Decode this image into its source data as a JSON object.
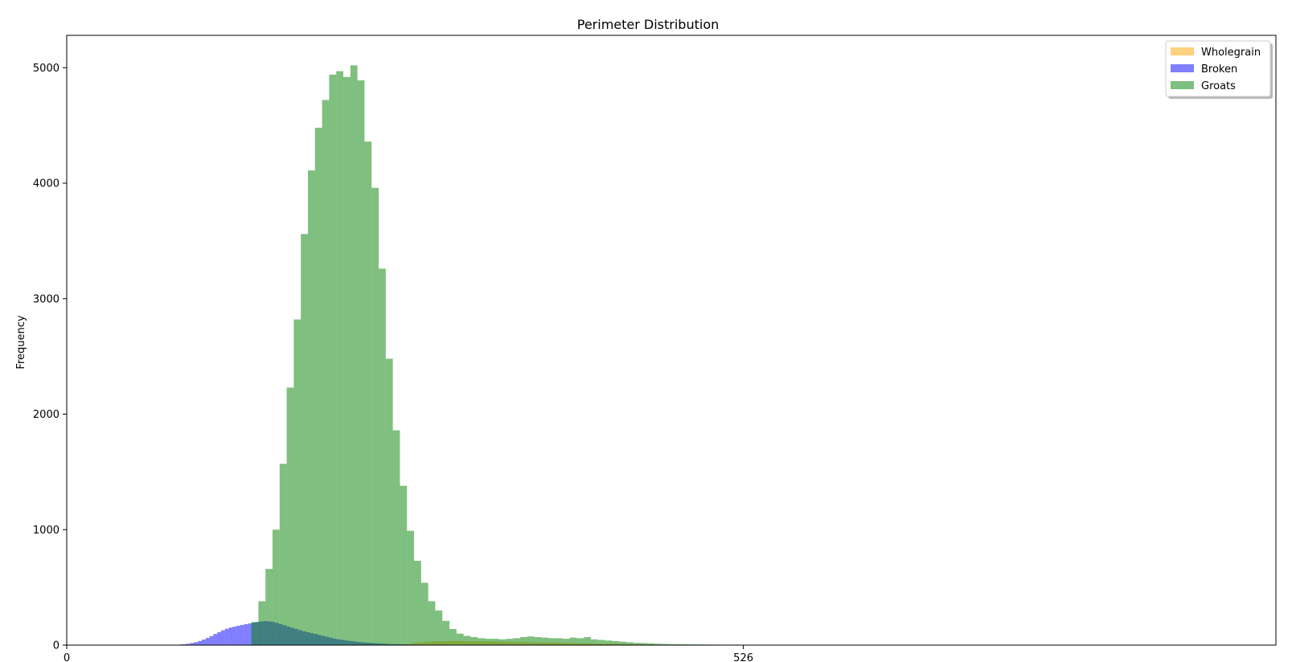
{
  "chart_data": {
    "type": "bar",
    "title": "Perimeter Distribution",
    "xlabel": "",
    "ylabel": "Frequency",
    "xlim": [
      0,
      940
    ],
    "ylim": [
      0,
      5280
    ],
    "x_ticks": [
      {
        "value": 0,
        "label": "0"
      },
      {
        "value": 526,
        "label": "526"
      }
    ],
    "y_ticks": [
      {
        "value": 0,
        "label": "0"
      },
      {
        "value": 1000,
        "label": "1000"
      },
      {
        "value": 2000,
        "label": "2000"
      },
      {
        "value": 3000,
        "label": "3000"
      },
      {
        "value": 4000,
        "label": "4000"
      },
      {
        "value": 5000,
        "label": "5000"
      }
    ],
    "grid": false,
    "legend_position": "top-right",
    "series": [
      {
        "name": "Wholegrain",
        "color": "#ffa500",
        "opacity": 0.5,
        "bin_width": 3,
        "bins": [
          {
            "x": 258,
            "h": 5
          },
          {
            "x": 261,
            "h": 8
          },
          {
            "x": 264,
            "h": 10
          },
          {
            "x": 267,
            "h": 15
          },
          {
            "x": 270,
            "h": 20
          },
          {
            "x": 273,
            "h": 24
          },
          {
            "x": 276,
            "h": 26
          },
          {
            "x": 279,
            "h": 28
          },
          {
            "x": 282,
            "h": 30
          },
          {
            "x": 285,
            "h": 32
          },
          {
            "x": 288,
            "h": 33
          },
          {
            "x": 291,
            "h": 34
          },
          {
            "x": 294,
            "h": 35
          },
          {
            "x": 297,
            "h": 36
          },
          {
            "x": 300,
            "h": 36
          },
          {
            "x": 303,
            "h": 36
          },
          {
            "x": 306,
            "h": 36
          },
          {
            "x": 309,
            "h": 35
          },
          {
            "x": 312,
            "h": 35
          },
          {
            "x": 315,
            "h": 34
          },
          {
            "x": 318,
            "h": 34
          },
          {
            "x": 321,
            "h": 33
          },
          {
            "x": 324,
            "h": 33
          },
          {
            "x": 327,
            "h": 32
          },
          {
            "x": 330,
            "h": 32
          },
          {
            "x": 333,
            "h": 31
          },
          {
            "x": 336,
            "h": 30
          },
          {
            "x": 339,
            "h": 30
          },
          {
            "x": 342,
            "h": 29
          },
          {
            "x": 345,
            "h": 28
          },
          {
            "x": 348,
            "h": 28
          },
          {
            "x": 351,
            "h": 27
          },
          {
            "x": 354,
            "h": 26
          },
          {
            "x": 357,
            "h": 26
          },
          {
            "x": 360,
            "h": 25
          },
          {
            "x": 363,
            "h": 24
          },
          {
            "x": 366,
            "h": 24
          },
          {
            "x": 369,
            "h": 23
          },
          {
            "x": 372,
            "h": 22
          },
          {
            "x": 375,
            "h": 22
          },
          {
            "x": 378,
            "h": 21
          },
          {
            "x": 381,
            "h": 20
          },
          {
            "x": 384,
            "h": 20
          },
          {
            "x": 387,
            "h": 19
          },
          {
            "x": 390,
            "h": 18
          },
          {
            "x": 393,
            "h": 18
          },
          {
            "x": 396,
            "h": 17
          },
          {
            "x": 399,
            "h": 16
          },
          {
            "x": 402,
            "h": 16
          },
          {
            "x": 405,
            "h": 15
          },
          {
            "x": 408,
            "h": 14
          },
          {
            "x": 411,
            "h": 14
          },
          {
            "x": 414,
            "h": 13
          },
          {
            "x": 417,
            "h": 12
          },
          {
            "x": 420,
            "h": 12
          },
          {
            "x": 423,
            "h": 11
          },
          {
            "x": 426,
            "h": 10
          },
          {
            "x": 429,
            "h": 10
          },
          {
            "x": 432,
            "h": 9
          },
          {
            "x": 435,
            "h": 8
          },
          {
            "x": 438,
            "h": 8
          },
          {
            "x": 441,
            "h": 7
          },
          {
            "x": 444,
            "h": 6
          },
          {
            "x": 447,
            "h": 6
          },
          {
            "x": 450,
            "h": 5
          },
          {
            "x": 453,
            "h": 5
          },
          {
            "x": 456,
            "h": 4
          },
          {
            "x": 459,
            "h": 4
          },
          {
            "x": 462,
            "h": 3
          },
          {
            "x": 465,
            "h": 3
          },
          {
            "x": 468,
            "h": 3
          },
          {
            "x": 471,
            "h": 2
          },
          {
            "x": 474,
            "h": 2
          },
          {
            "x": 477,
            "h": 2
          },
          {
            "x": 480,
            "h": 2
          }
        ]
      },
      {
        "name": "Broken",
        "color": "#0000ff",
        "opacity": 0.5,
        "bin_width": 3,
        "bins": [
          {
            "x": 87,
            "h": 5
          },
          {
            "x": 90,
            "h": 8
          },
          {
            "x": 93,
            "h": 12
          },
          {
            "x": 96,
            "h": 18
          },
          {
            "x": 99,
            "h": 26
          },
          {
            "x": 102,
            "h": 36
          },
          {
            "x": 105,
            "h": 48
          },
          {
            "x": 108,
            "h": 62
          },
          {
            "x": 111,
            "h": 78
          },
          {
            "x": 114,
            "h": 96
          },
          {
            "x": 117,
            "h": 112
          },
          {
            "x": 120,
            "h": 128
          },
          {
            "x": 123,
            "h": 142
          },
          {
            "x": 126,
            "h": 152
          },
          {
            "x": 129,
            "h": 160
          },
          {
            "x": 132,
            "h": 168
          },
          {
            "x": 135,
            "h": 175
          },
          {
            "x": 138,
            "h": 182
          },
          {
            "x": 141,
            "h": 188
          },
          {
            "x": 144,
            "h": 195
          },
          {
            "x": 147,
            "h": 200
          },
          {
            "x": 150,
            "h": 205
          },
          {
            "x": 153,
            "h": 208
          },
          {
            "x": 156,
            "h": 205
          },
          {
            "x": 159,
            "h": 200
          },
          {
            "x": 162,
            "h": 192
          },
          {
            "x": 165,
            "h": 182
          },
          {
            "x": 168,
            "h": 172
          },
          {
            "x": 171,
            "h": 160
          },
          {
            "x": 174,
            "h": 150
          },
          {
            "x": 177,
            "h": 140
          },
          {
            "x": 180,
            "h": 130
          },
          {
            "x": 183,
            "h": 120
          },
          {
            "x": 186,
            "h": 112
          },
          {
            "x": 189,
            "h": 104
          },
          {
            "x": 192,
            "h": 96
          },
          {
            "x": 195,
            "h": 88
          },
          {
            "x": 198,
            "h": 80
          },
          {
            "x": 201,
            "h": 72
          },
          {
            "x": 204,
            "h": 64
          },
          {
            "x": 207,
            "h": 56
          },
          {
            "x": 210,
            "h": 50
          },
          {
            "x": 213,
            "h": 45
          },
          {
            "x": 216,
            "h": 40
          },
          {
            "x": 219,
            "h": 36
          },
          {
            "x": 222,
            "h": 32
          },
          {
            "x": 225,
            "h": 28
          },
          {
            "x": 228,
            "h": 25
          },
          {
            "x": 231,
            "h": 22
          },
          {
            "x": 234,
            "h": 20
          },
          {
            "x": 237,
            "h": 18
          },
          {
            "x": 240,
            "h": 16
          },
          {
            "x": 243,
            "h": 14
          },
          {
            "x": 246,
            "h": 12
          },
          {
            "x": 249,
            "h": 10
          },
          {
            "x": 252,
            "h": 9
          },
          {
            "x": 255,
            "h": 8
          },
          {
            "x": 258,
            "h": 7
          },
          {
            "x": 261,
            "h": 6
          },
          {
            "x": 264,
            "h": 5
          },
          {
            "x": 267,
            "h": 4
          },
          {
            "x": 270,
            "h": 4
          },
          {
            "x": 273,
            "h": 3
          },
          {
            "x": 276,
            "h": 3
          },
          {
            "x": 279,
            "h": 2
          },
          {
            "x": 282,
            "h": 2
          }
        ]
      },
      {
        "name": "Groats",
        "color": "#008000",
        "opacity": 0.5,
        "bin_width": 5.5,
        "bins": [
          {
            "x": 143.5,
            "h": 200
          },
          {
            "x": 149,
            "h": 380
          },
          {
            "x": 154.5,
            "h": 660
          },
          {
            "x": 160,
            "h": 1000
          },
          {
            "x": 165.5,
            "h": 1570
          },
          {
            "x": 171,
            "h": 2230
          },
          {
            "x": 176.5,
            "h": 2820
          },
          {
            "x": 182,
            "h": 3560
          },
          {
            "x": 187.5,
            "h": 4110
          },
          {
            "x": 193,
            "h": 4480
          },
          {
            "x": 198.5,
            "h": 4720
          },
          {
            "x": 204,
            "h": 4940
          },
          {
            "x": 209.5,
            "h": 4970
          },
          {
            "x": 215,
            "h": 4920
          },
          {
            "x": 220.5,
            "h": 5020
          },
          {
            "x": 226,
            "h": 4890
          },
          {
            "x": 231.5,
            "h": 4360
          },
          {
            "x": 237,
            "h": 3960
          },
          {
            "x": 242.5,
            "h": 3260
          },
          {
            "x": 248,
            "h": 2480
          },
          {
            "x": 253.5,
            "h": 1860
          },
          {
            "x": 259,
            "h": 1380
          },
          {
            "x": 264.5,
            "h": 990
          },
          {
            "x": 270,
            "h": 730
          },
          {
            "x": 275.5,
            "h": 540
          },
          {
            "x": 281,
            "h": 380
          },
          {
            "x": 286.5,
            "h": 300
          },
          {
            "x": 292,
            "h": 210
          },
          {
            "x": 297.5,
            "h": 140
          },
          {
            "x": 303,
            "h": 100
          },
          {
            "x": 308.5,
            "h": 80
          },
          {
            "x": 314,
            "h": 70
          },
          {
            "x": 319.5,
            "h": 60
          },
          {
            "x": 325,
            "h": 55
          },
          {
            "x": 330.5,
            "h": 55
          },
          {
            "x": 336,
            "h": 50
          },
          {
            "x": 341.5,
            "h": 55
          },
          {
            "x": 347,
            "h": 60
          },
          {
            "x": 352.5,
            "h": 70
          },
          {
            "x": 358,
            "h": 75
          },
          {
            "x": 363.5,
            "h": 70
          },
          {
            "x": 369,
            "h": 65
          },
          {
            "x": 374.5,
            "h": 60
          },
          {
            "x": 380,
            "h": 60
          },
          {
            "x": 385.5,
            "h": 55
          },
          {
            "x": 391,
            "h": 65
          },
          {
            "x": 396.5,
            "h": 60
          },
          {
            "x": 402,
            "h": 70
          },
          {
            "x": 407.5,
            "h": 50
          },
          {
            "x": 413,
            "h": 45
          },
          {
            "x": 418.5,
            "h": 40
          },
          {
            "x": 424,
            "h": 35
          },
          {
            "x": 429.5,
            "h": 30
          },
          {
            "x": 435,
            "h": 25
          },
          {
            "x": 440.5,
            "h": 20
          },
          {
            "x": 446,
            "h": 18
          },
          {
            "x": 451.5,
            "h": 15
          },
          {
            "x": 457,
            "h": 12
          },
          {
            "x": 462.5,
            "h": 10
          },
          {
            "x": 468,
            "h": 9
          },
          {
            "x": 473.5,
            "h": 8
          },
          {
            "x": 479,
            "h": 7
          },
          {
            "x": 484.5,
            "h": 6
          },
          {
            "x": 490,
            "h": 6
          },
          {
            "x": 495.5,
            "h": 5
          },
          {
            "x": 501,
            "h": 5
          },
          {
            "x": 506.5,
            "h": 4
          },
          {
            "x": 512,
            "h": 4
          },
          {
            "x": 517.5,
            "h": 4
          },
          {
            "x": 523,
            "h": 3
          },
          {
            "x": 528.5,
            "h": 3
          },
          {
            "x": 534,
            "h": 3
          },
          {
            "x": 539.5,
            "h": 2
          },
          {
            "x": 545,
            "h": 2
          },
          {
            "x": 550.5,
            "h": 2
          },
          {
            "x": 556,
            "h": 2
          },
          {
            "x": 561.5,
            "h": 2
          },
          {
            "x": 567,
            "h": 2
          }
        ]
      }
    ]
  }
}
